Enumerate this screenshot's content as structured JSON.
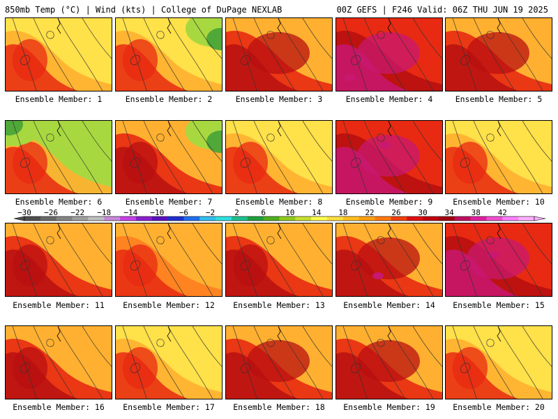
{
  "header": {
    "left": "850mb Temp (°C) | Wind (kts) | College of DuPage NEXLAB",
    "right": "00Z GEFS | F246 Valid: 06Z THU JUN 19 2025"
  },
  "panels": [
    {
      "label": "Ensemble Member: 1"
    },
    {
      "label": "Ensemble Member: 2"
    },
    {
      "label": "Ensemble Member: 3"
    },
    {
      "label": "Ensemble Member: 4"
    },
    {
      "label": "Ensemble Member: 5"
    },
    {
      "label": "Ensemble Member: 6"
    },
    {
      "label": "Ensemble Member: 7"
    },
    {
      "label": "Ensemble Member: 8"
    },
    {
      "label": "Ensemble Member: 9"
    },
    {
      "label": "Ensemble Member: 10"
    },
    {
      "label": "Ensemble Member: 11"
    },
    {
      "label": "Ensemble Member: 12"
    },
    {
      "label": "Ensemble Member: 13"
    },
    {
      "label": "Ensemble Member: 14"
    },
    {
      "label": "Ensemble Member: 15"
    },
    {
      "label": "Ensemble Member: 16"
    },
    {
      "label": "Ensemble Member: 17"
    },
    {
      "label": "Ensemble Member: 18"
    },
    {
      "label": "Ensemble Member: 19"
    },
    {
      "label": "Ensemble Member: 20"
    }
  ],
  "colorbar": {
    "labels": [
      "−30",
      "−26",
      "−22",
      "−18",
      "−14",
      "−10",
      "−6",
      "−2",
      "2",
      "6",
      "10",
      "14",
      "18",
      "22",
      "26",
      "30",
      "34",
      "38",
      "42"
    ],
    "colors": [
      "#4f4f4f",
      "#6a6a6a",
      "#858585",
      "#a0a0a0",
      "#c0c0c0",
      "#c88ad8",
      "#c840e8",
      "#8a20d0",
      "#5a10c0",
      "#2030d0",
      "#2070f0",
      "#30c0f0",
      "#30e0e0",
      "#20c090",
      "#20a040",
      "#50b020",
      "#90cc20",
      "#c8e030",
      "#ffff50",
      "#ffe040",
      "#ffc020",
      "#ffa010",
      "#ff7a10",
      "#f04010",
      "#e01010",
      "#c00010",
      "#a00010",
      "#c01060",
      "#e020a0",
      "#f050d0",
      "#ff80ff",
      "#ffb0ff"
    ]
  },
  "palette": {
    "yellow": "#ffe14a",
    "orange": "#ffb030",
    "dark_orange": "#ff8020",
    "red": "#e82a12",
    "dark_red": "#b81010",
    "magenta": "#c81870",
    "green": "#50a838",
    "light_green": "#a8d840"
  }
}
